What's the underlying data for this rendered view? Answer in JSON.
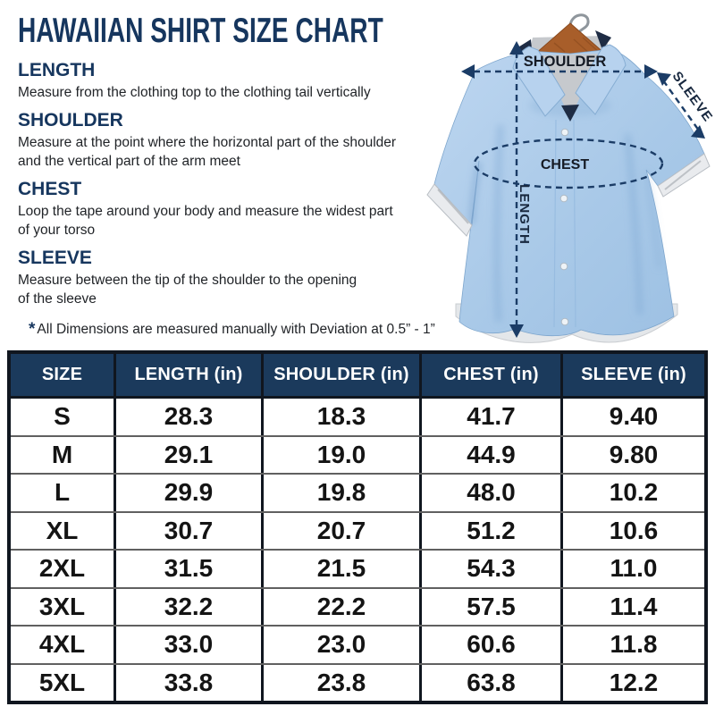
{
  "title": "HAWAIIAN SHIRT SIZE CHART",
  "sections": [
    {
      "heading": "LENGTH",
      "desc": "Measure from the clothing top to the clothing tail vertically"
    },
    {
      "heading": "SHOULDER",
      "desc": "Measure at the point where the horizontal part of the shoulder\nand the vertical part of the arm meet"
    },
    {
      "heading": "CHEST",
      "desc": "Loop the tape around your body and measure the widest part\nof your torso"
    },
    {
      "heading": "SLEEVE",
      "desc": "Measure between the tip of the shoulder to the opening\nof the sleeve"
    }
  ],
  "note": {
    "star": "*",
    "text": "All Dimensions are measured manually with Deviation at 0.5” - 1”"
  },
  "diagram": {
    "labels": {
      "shoulder": "SHOULDER",
      "sleeve": "SLEEVE",
      "chest": "CHEST",
      "length": "LENGTH"
    }
  },
  "table": {
    "column_keys": [
      "size",
      "length_in",
      "shoulder_in",
      "chest_in",
      "sleeve_in"
    ],
    "headers": [
      "SIZE",
      "LENGTH (in)",
      "SHOULDER (in)",
      "CHEST (in)",
      "SLEEVE (in)"
    ],
    "rows": [
      {
        "size": "S",
        "length_in": "28.3",
        "shoulder_in": "18.3",
        "chest_in": "41.7",
        "sleeve_in": "9.40"
      },
      {
        "size": "M",
        "length_in": "29.1",
        "shoulder_in": "19.0",
        "chest_in": "44.9",
        "sleeve_in": "9.80"
      },
      {
        "size": "L",
        "length_in": "29.9",
        "shoulder_in": "19.8",
        "chest_in": "48.0",
        "sleeve_in": "10.2"
      },
      {
        "size": "XL",
        "length_in": "30.7",
        "shoulder_in": "20.7",
        "chest_in": "51.2",
        "sleeve_in": "10.6"
      },
      {
        "size": "2XL",
        "length_in": "31.5",
        "shoulder_in": "21.5",
        "chest_in": "54.3",
        "sleeve_in": "11.0"
      },
      {
        "size": "3XL",
        "length_in": "32.2",
        "shoulder_in": "22.2",
        "chest_in": "57.5",
        "sleeve_in": "11.4"
      },
      {
        "size": "4XL",
        "length_in": "33.0",
        "shoulder_in": "23.0",
        "chest_in": "60.6",
        "sleeve_in": "11.8"
      },
      {
        "size": "5XL",
        "length_in": "33.8",
        "shoulder_in": "23.8",
        "chest_in": "63.8",
        "sleeve_in": "12.2"
      }
    ]
  },
  "colors": {
    "navy_text": "#16365e",
    "table_header_bg": "#1b3a5c",
    "table_border": "#10161f",
    "annotation_navy": "#1b3c66",
    "shirt_blue": "#a9c9e8",
    "hanger_brown": "#a85e2a"
  }
}
